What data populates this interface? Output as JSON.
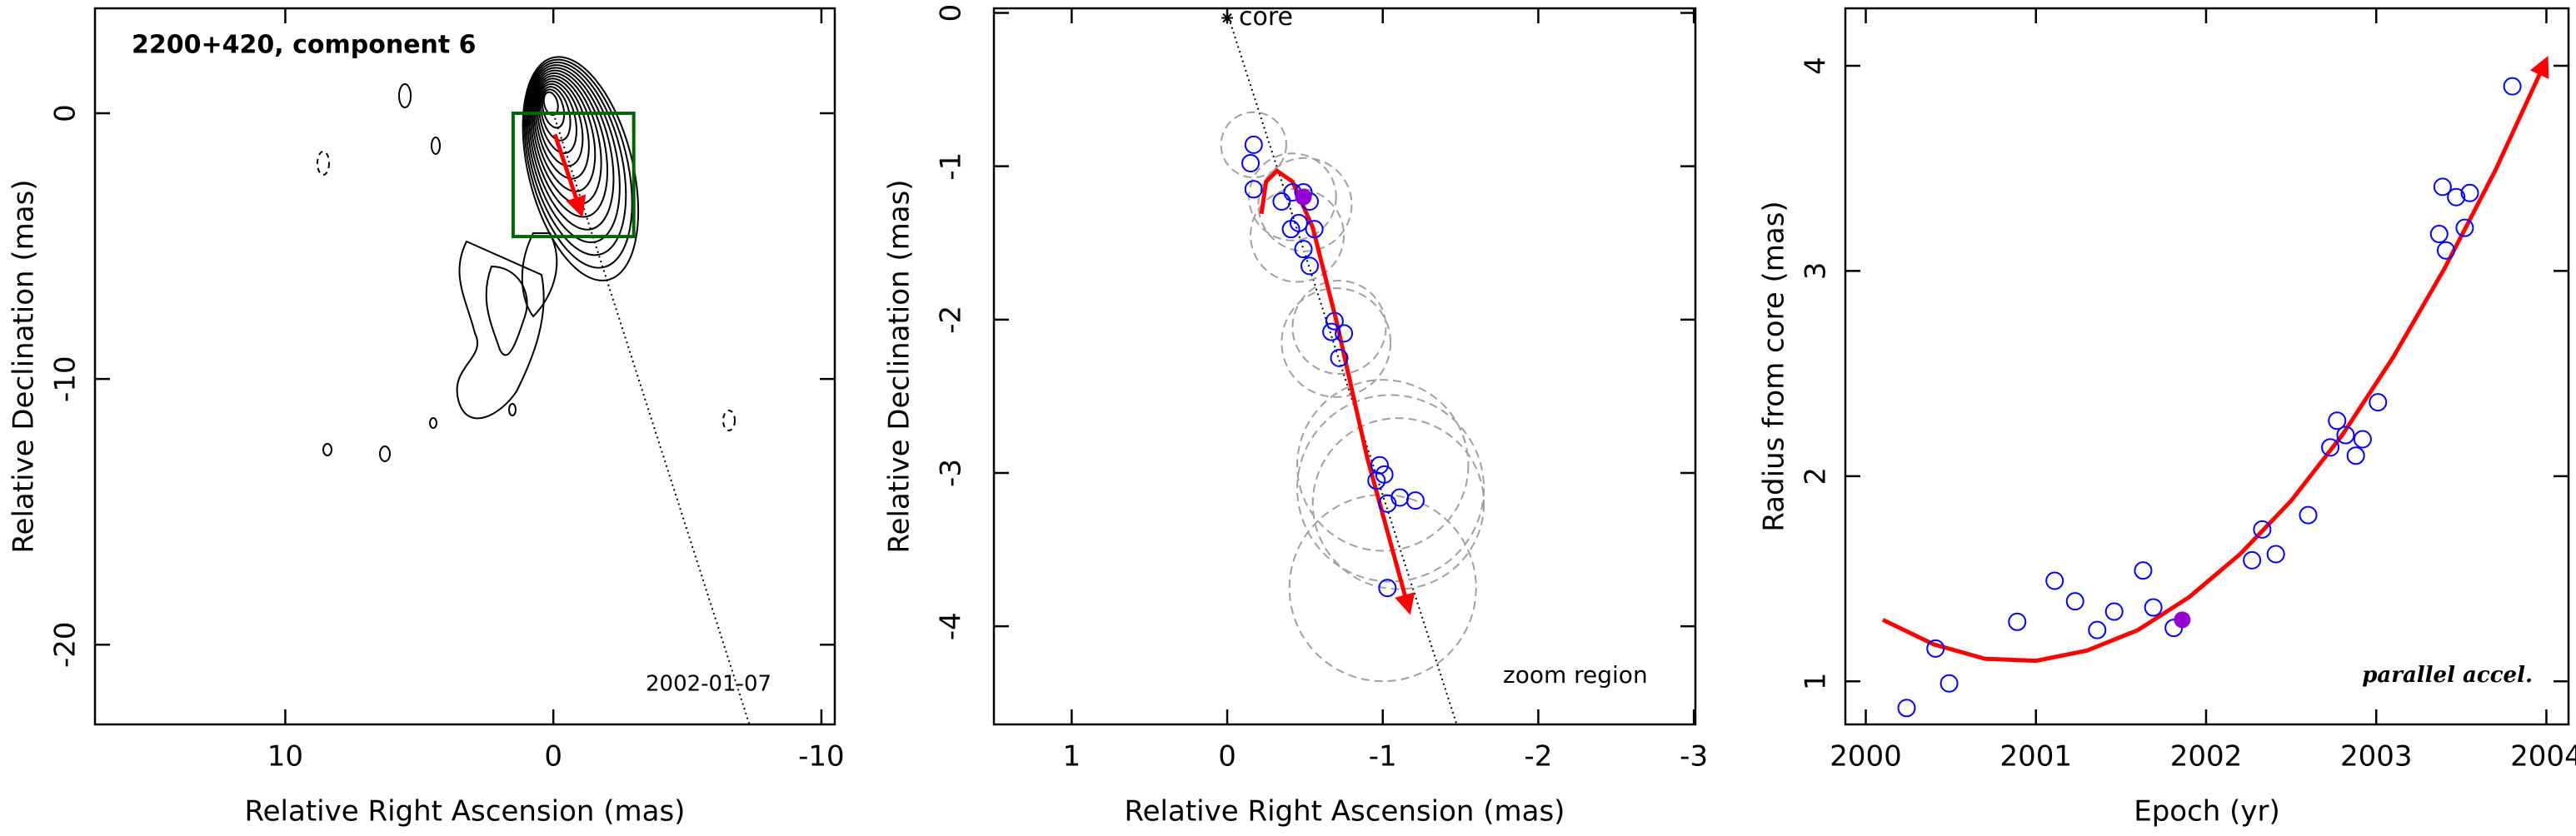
{
  "chart_data": [
    {
      "type": "map",
      "title": "2200+420, component 6",
      "annotation": "2002-01-07",
      "x_label": "Relative Right Ascension (mas)",
      "y_label": "Relative Declination (mas)",
      "xlim": [
        17.1,
        -10.5
      ],
      "ylim": [
        -23,
        3.95
      ],
      "xticks": [
        10,
        0,
        -10
      ],
      "yticks": [
        0,
        -10,
        -20
      ],
      "zoom_box": {
        "x": [
          1.5,
          -3.0
        ],
        "y": [
          0,
          -4.64
        ],
        "color": "#006400"
      },
      "track": {
        "x": [
          -0.06,
          -1.04
        ],
        "y": [
          -0.8,
          -3.77
        ],
        "color": "#ff0000"
      }
    },
    {
      "type": "scatter",
      "annotation": "zoom region",
      "core_label": "core",
      "x_label": "Relative Right Ascension (mas)",
      "y_label": "Relative Declination (mas)",
      "xlim": [
        1.5,
        -3.01
      ],
      "ylim": [
        -4.64,
        0.03
      ],
      "xticks": [
        1,
        0,
        -1,
        -2,
        -3
      ],
      "yticks": [
        0,
        -1,
        -2,
        -3,
        -4
      ],
      "points": {
        "color": "#0000ff",
        "x": [
          -0.17,
          -0.15,
          -0.17,
          -0.35,
          -0.42,
          -0.49,
          -0.53,
          -0.41,
          -0.46,
          -0.56,
          -0.49,
          -0.53,
          -0.69,
          -0.67,
          -0.75,
          -0.72,
          -0.98,
          -0.96,
          -1.01,
          -1.03,
          -1.11,
          -1.21,
          -1.03
        ],
        "y": [
          -0.86,
          -0.98,
          -1.15,
          -1.23,
          -1.17,
          -1.17,
          -1.23,
          -1.41,
          -1.37,
          -1.41,
          -1.54,
          -1.65,
          -2.01,
          -2.08,
          -2.09,
          -2.25,
          -2.95,
          -3.05,
          -3.01,
          -3.2,
          -3.16,
          -3.18,
          -3.75
        ]
      },
      "highlight": {
        "x": -0.49,
        "y": -1.2,
        "color": "#9400d3"
      },
      "error_circles": {
        "color": "#a0a0a0",
        "x": [
          -0.17,
          -0.42,
          -0.5,
          -0.45,
          -0.72,
          -0.7,
          -1.0,
          -1.05,
          -1.1,
          -1.0
        ],
        "y": [
          -0.86,
          -1.2,
          -1.25,
          -1.45,
          -2.05,
          -2.15,
          -2.95,
          -3.1,
          -3.2,
          -3.75
        ],
        "r": [
          0.21,
          0.28,
          0.3,
          0.3,
          0.3,
          0.35,
          0.55,
          0.6,
          0.55,
          0.6
        ]
      },
      "track": {
        "color": "#ff0000",
        "x": [
          -0.22,
          -0.25,
          -0.32,
          -0.42,
          -0.55,
          -0.7,
          -0.9,
          -1.17
        ],
        "y": [
          -1.31,
          -1.1,
          -1.03,
          -1.1,
          -1.4,
          -2.0,
          -2.9,
          -3.9
        ]
      }
    },
    {
      "type": "scatter",
      "annotation": "parallel accel.",
      "x_label": "Epoch (yr)",
      "y_label": "Radius from core (mas)",
      "xlim": [
        1999.88,
        2004.13
      ],
      "ylim": [
        0.79,
        4.28
      ],
      "xticks": [
        2000,
        2001,
        2002,
        2003,
        2004
      ],
      "yticks": [
        1,
        2,
        3,
        4
      ],
      "points": {
        "color": "#0000ff",
        "x": [
          2000.24,
          2000.41,
          2000.49,
          2000.89,
          2001.11,
          2001.23,
          2001.36,
          2001.46,
          2001.63,
          2001.69,
          2001.81,
          2002.27,
          2002.33,
          2002.41,
          2002.6,
          2002.73,
          2002.77,
          2002.82,
          2002.88,
          2002.92,
          2003.01,
          2003.37,
          2003.39,
          2003.41,
          2003.47,
          2003.52,
          2003.55,
          2003.8
        ],
        "y": [
          0.87,
          1.16,
          0.99,
          1.29,
          1.49,
          1.39,
          1.25,
          1.34,
          1.54,
          1.36,
          1.26,
          1.59,
          1.74,
          1.62,
          1.81,
          2.14,
          2.27,
          2.2,
          2.1,
          2.18,
          2.36,
          3.18,
          3.41,
          3.1,
          3.36,
          3.21,
          3.38,
          3.9
        ]
      },
      "highlight": {
        "x": 2001.86,
        "y": 1.3,
        "color": "#9400d3"
      },
      "track": {
        "color": "#ff0000",
        "x": [
          2000.1,
          2000.4,
          2000.7,
          2001.0,
          2001.3,
          2001.6,
          2001.9,
          2002.2,
          2002.5,
          2002.8,
          2003.1,
          2003.4,
          2003.7,
          2004.0
        ],
        "y": [
          1.3,
          1.18,
          1.11,
          1.1,
          1.15,
          1.25,
          1.41,
          1.62,
          1.88,
          2.2,
          2.58,
          3.01,
          3.49,
          4.03
        ]
      }
    }
  ]
}
